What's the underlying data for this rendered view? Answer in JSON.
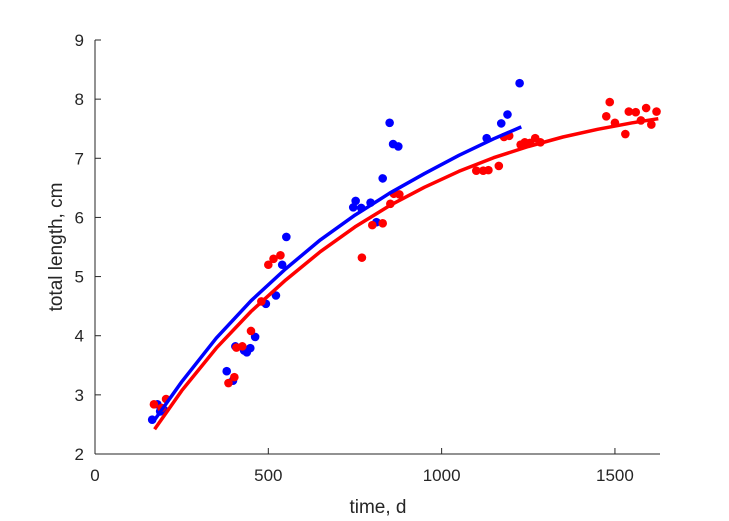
{
  "chart_data": {
    "type": "scatter",
    "xlabel": "time, d",
    "ylabel": "total length, cm",
    "xlim": [
      0,
      1630
    ],
    "ylim": [
      2,
      9
    ],
    "x_ticks": [
      0,
      500,
      1000,
      1500
    ],
    "y_ticks": [
      2,
      3,
      4,
      5,
      6,
      7,
      8,
      9
    ],
    "grid": false,
    "legend": "none",
    "series": [
      {
        "color": "#0000ff",
        "points": [
          [
            165,
            2.58
          ],
          [
            180,
            2.84
          ],
          [
            188,
            2.72
          ],
          [
            200,
            2.74
          ],
          [
            380,
            3.4
          ],
          [
            398,
            3.24
          ],
          [
            405,
            3.82
          ],
          [
            430,
            3.75
          ],
          [
            438,
            3.72
          ],
          [
            448,
            3.79
          ],
          [
            462,
            3.98
          ],
          [
            493,
            4.54
          ],
          [
            522,
            4.68
          ],
          [
            540,
            5.2
          ],
          [
            552,
            5.67
          ],
          [
            745,
            6.17
          ],
          [
            752,
            6.28
          ],
          [
            768,
            6.16
          ],
          [
            795,
            6.25
          ],
          [
            812,
            5.92
          ],
          [
            830,
            6.66
          ],
          [
            850,
            7.6
          ],
          [
            860,
            7.24
          ],
          [
            875,
            7.2
          ],
          [
            1130,
            7.34
          ],
          [
            1172,
            7.59
          ],
          [
            1190,
            7.74
          ],
          [
            1225,
            8.27
          ]
        ],
        "fit_curve": [
          [
            170,
            2.56
          ],
          [
            250,
            3.22
          ],
          [
            350,
            3.96
          ],
          [
            450,
            4.59
          ],
          [
            550,
            5.13
          ],
          [
            650,
            5.62
          ],
          [
            750,
            6.04
          ],
          [
            850,
            6.41
          ],
          [
            950,
            6.74
          ],
          [
            1050,
            7.05
          ],
          [
            1150,
            7.33
          ],
          [
            1230,
            7.53
          ]
        ]
      },
      {
        "color": "#ff0000",
        "points": [
          [
            170,
            2.84
          ],
          [
            192,
            2.78
          ],
          [
            205,
            2.93
          ],
          [
            385,
            3.2
          ],
          [
            402,
            3.3
          ],
          [
            408,
            3.8
          ],
          [
            425,
            3.82
          ],
          [
            450,
            4.08
          ],
          [
            480,
            4.58
          ],
          [
            500,
            5.2
          ],
          [
            515,
            5.3
          ],
          [
            535,
            5.36
          ],
          [
            770,
            5.32
          ],
          [
            800,
            5.87
          ],
          [
            830,
            5.9
          ],
          [
            852,
            6.23
          ],
          [
            862,
            6.4
          ],
          [
            878,
            6.39
          ],
          [
            1100,
            6.79
          ],
          [
            1120,
            6.79
          ],
          [
            1135,
            6.8
          ],
          [
            1165,
            6.87
          ],
          [
            1180,
            7.36
          ],
          [
            1195,
            7.38
          ],
          [
            1228,
            7.23
          ],
          [
            1240,
            7.27
          ],
          [
            1255,
            7.26
          ],
          [
            1270,
            7.34
          ],
          [
            1285,
            7.27
          ],
          [
            1475,
            7.71
          ],
          [
            1485,
            7.95
          ],
          [
            1500,
            7.6
          ],
          [
            1530,
            7.41
          ],
          [
            1540,
            7.79
          ],
          [
            1560,
            7.78
          ],
          [
            1575,
            7.64
          ],
          [
            1590,
            7.85
          ],
          [
            1605,
            7.57
          ],
          [
            1620,
            7.79
          ]
        ],
        "fit_curve": [
          [
            172,
            2.42
          ],
          [
            250,
            3.07
          ],
          [
            350,
            3.79
          ],
          [
            450,
            4.41
          ],
          [
            550,
            4.94
          ],
          [
            650,
            5.42
          ],
          [
            750,
            5.84
          ],
          [
            850,
            6.2
          ],
          [
            950,
            6.51
          ],
          [
            1050,
            6.78
          ],
          [
            1150,
            7.01
          ],
          [
            1250,
            7.2
          ],
          [
            1350,
            7.36
          ],
          [
            1450,
            7.49
          ],
          [
            1550,
            7.6
          ],
          [
            1625,
            7.67
          ]
        ]
      }
    ]
  }
}
